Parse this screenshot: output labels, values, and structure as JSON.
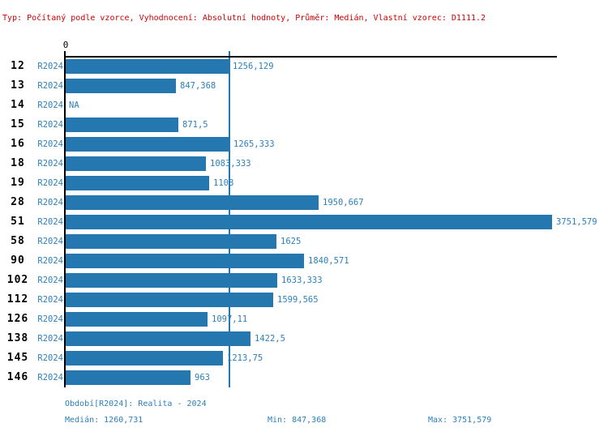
{
  "header": {
    "text": "Typ: Počítaný podle vzorce, Vyhodnocení: Absolutní hodnoty, Průměr: Medián, Vlastní vzorec: D1111.2",
    "color": "#cc0000"
  },
  "chart_data": {
    "type": "bar",
    "orientation": "horizontal",
    "title": "",
    "xlabel": "",
    "ylabel": "",
    "axis_zero_label": "0",
    "categories": [
      "12",
      "13",
      "14",
      "15",
      "16",
      "18",
      "19",
      "28",
      "51",
      "58",
      "90",
      "102",
      "112",
      "126",
      "138",
      "145",
      "146"
    ],
    "series_label": "R2024",
    "values": [
      1256.129,
      847.368,
      null,
      871.5,
      1265.333,
      1083.333,
      1108,
      1950.667,
      3751.579,
      1625,
      1840.571,
      1633.333,
      1599.565,
      1097.11,
      1422.5,
      1213.75,
      963
    ],
    "value_labels": [
      "1256,129",
      "847,368",
      "NA",
      "871,5",
      "1265,333",
      "1083,333",
      "1108",
      "1950,667",
      "3751,579",
      "1625",
      "1840,571",
      "1633,333",
      "1599,565",
      "1097,11",
      "1422,5",
      "1213,75",
      "963"
    ],
    "na_label": "NA",
    "median_value": 1260.731,
    "xlim": [
      0,
      3751.579
    ],
    "grid": false,
    "legend": false,
    "bar_color": "#2577af",
    "text_color": "#2d7fb8",
    "median_line_color": "#2577af"
  },
  "footer": {
    "period": "Období[R2024]: Realita - 2024",
    "median": "Medián: 1260,731",
    "min": "Min: 847,368",
    "max": "Max: 3751,579"
  }
}
